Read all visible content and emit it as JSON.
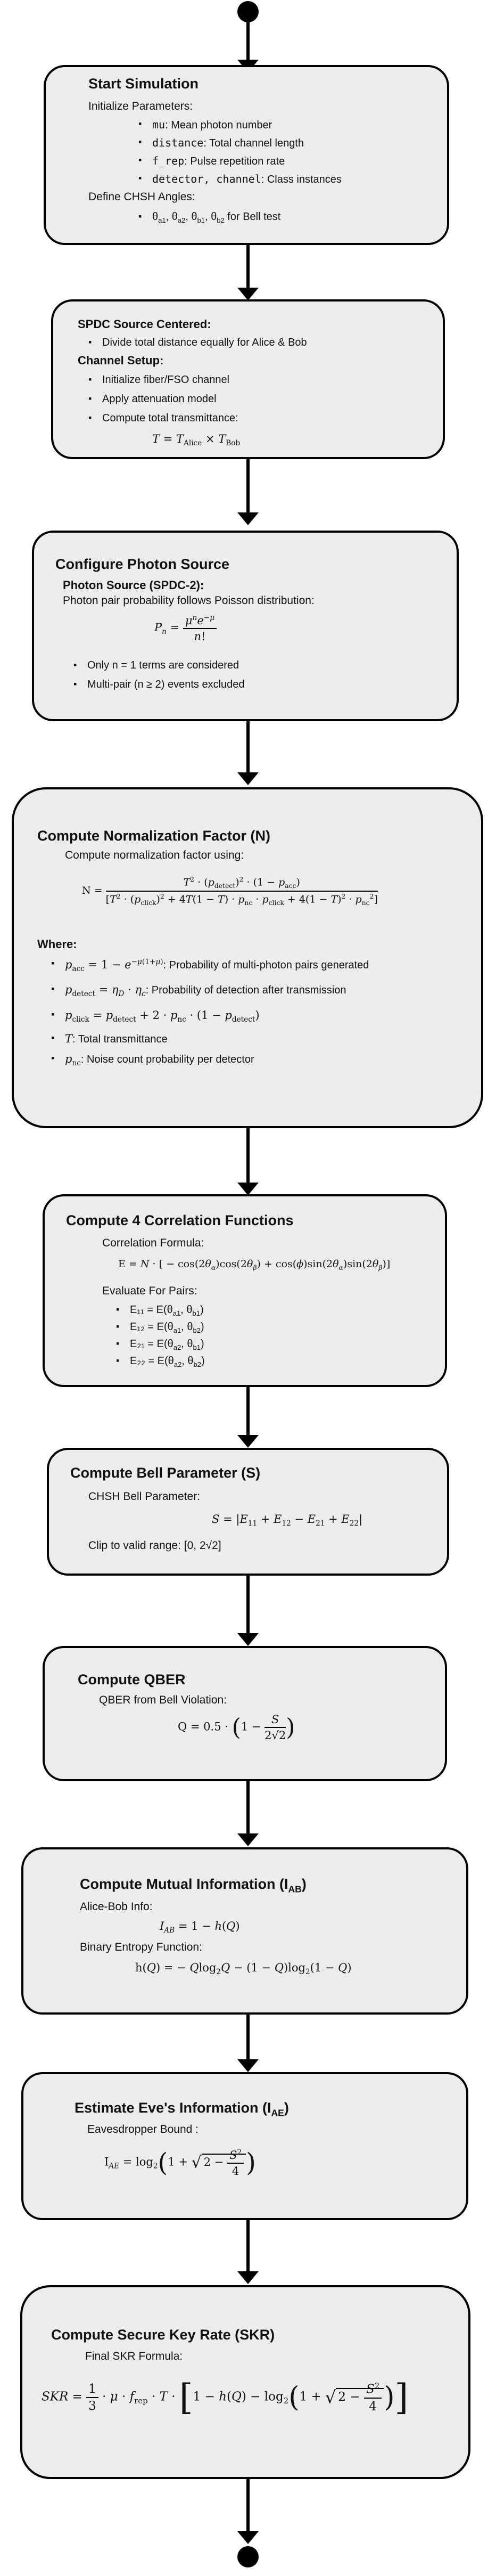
{
  "flow": {
    "start_node": "",
    "end_node": ""
  },
  "box1": {
    "title": "Start Simulation",
    "init_label": "Initialize Parameters:",
    "items": [
      {
        "code": "mu",
        "desc": ": Mean photon number"
      },
      {
        "code": "distance",
        "desc": ": Total channel length"
      },
      {
        "code": "f_rep",
        "desc": ": Pulse repetition rate"
      },
      {
        "code": "detector, channel",
        "desc": ": Class instances"
      }
    ],
    "chsh_label": "Define CHSH Angles:",
    "angles": "θ_a1, θ_a2, θ_b1, θ_b2 for Bell test"
  },
  "box2": {
    "title": "SPDC Source Centered:",
    "items1": [
      "Divide total distance equally for Alice & Bob"
    ],
    "channel_label": "Channel Setup:",
    "items2": [
      "Initialize fiber/FSO channel",
      "Apply attenuation model",
      "Compute total transmittance:"
    ],
    "formula": "T = T_Alice × T_Bob"
  },
  "box3": {
    "title": "Configure Photon Source",
    "subtitle": "Photon Source (SPDC-2):",
    "desc": "Photon pair probability follows Poisson distribution:",
    "formula": "P_n = μ^n e^{-μ} / n!",
    "items": [
      "Only n = 1 terms are considered",
      "Multi-pair (n ≥ 2) events excluded"
    ]
  },
  "box4": {
    "title": "Compute Normalization Factor (N)",
    "desc": "Compute normalization factor using:",
    "formula_lhs": "N =",
    "where_label": "Where:",
    "items": [
      ": Probability of multi-photon pairs generated",
      ": Probability of detection after transmission",
      "",
      ": Total transmittance",
      ": Noise count probability per detector"
    ]
  },
  "box5": {
    "title": "Compute 4 Correlation Functions",
    "formula_label": "Correlation Formula:",
    "formula": "E = N · [ − cos(2θ_α)cos(2θ_β) + cos(ϕ)sin(2θ_α)sin(2θ_β)]",
    "pairs_label": "Evaluate For Pairs:",
    "pairs": [
      "E₁₁ = E(θ_a1, θ_b1)",
      "E₁₂ = E(θ_a1, θ_b2)",
      "E₂₁ = E(θ_a2, θ_b1)",
      "E₂₂ = E(θ_a2, θ_b2)"
    ]
  },
  "box6": {
    "title": "Compute Bell Parameter (S)",
    "label": "CHSH Bell Parameter:",
    "formula": "S = |E₁₁ + E₁₂ − E₂₁ + E₂₂|",
    "clip": "Clip to valid range: [0, 2√2]"
  },
  "box7": {
    "title": "Compute QBER",
    "label": "QBER from Bell Violation:",
    "formula": "Q = 0.5 · (1 − S / 2√2)"
  },
  "box8": {
    "title": "Compute Mutual Information (I_AB)",
    "label1": "Alice-Bob Info:",
    "formula1": "I_AB = 1 − h(Q)",
    "label2": "Binary Entropy Function:",
    "formula2": "h(Q) = − Q log₂ Q − (1 − Q) log₂(1 − Q)"
  },
  "box9": {
    "title": "Estimate Eve's Information (I_AE)",
    "label": "Eavesdropper Bound :",
    "formula": "I_AE = log₂(1 + √(2 − S²/4))"
  },
  "box10": {
    "title": "Compute Secure Key Rate (SKR)",
    "label": "Final SKR Formula:",
    "formula": "SKR = 1/3 · μ · f_rep · T · [1 − h(Q) − log₂(1 + √(2 − S²/4))]"
  }
}
